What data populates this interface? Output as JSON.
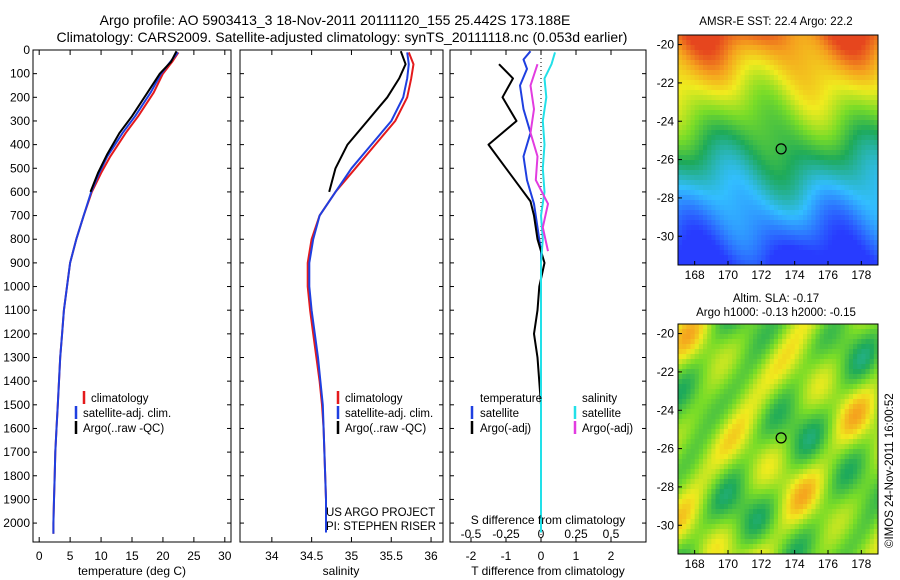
{
  "header": {
    "line1": "Argo profile: AO 5903413_3 18-Nov-2011 20111120_155 25.442S 173.188E",
    "line2": "Climatology: CARS2009. Satellite-adjusted climatology: synTS_20111118.nc (0.053d earlier)"
  },
  "colors": {
    "climatology": "#e41a1c",
    "satellite": "#1f3fe0",
    "argo": "#000000",
    "salinity_satellite": "#22e0e8",
    "salinity_argo": "#e23ce0"
  },
  "legend": {
    "climatology": "climatology",
    "satellite_adj": "satellite-adj. clim.",
    "argo": "Argo(..raw -QC)"
  },
  "diff_legend": {
    "temperature_header": "temperature",
    "salinity_header": "salinity",
    "satellite": "satellite",
    "argo_adj": "Argo(-adj)"
  },
  "credits": {
    "project": "US ARGO PROJECT",
    "pi": "PI: STEPHEN RISER"
  },
  "maps": {
    "sst_title": "AMSR-E SST: 22.4  Argo: 22.2",
    "sla_title1": "Altim. SLA: -0.17",
    "sla_title2": "Argo h1000: -0.13  h2000: -0.15",
    "lon_ticks": [
      "168",
      "170",
      "172",
      "174",
      "176",
      "178"
    ],
    "lat_ticks": [
      "-20",
      "-22",
      "-24",
      "-26",
      "-28",
      "-30"
    ],
    "profile_lon": 173.188,
    "profile_lat": -25.442
  },
  "stamp": "©IMOS 24-Nov-2011 16:00:52",
  "chart_data": [
    {
      "type": "line",
      "name": "temperature",
      "xlabel": "temperature (deg C)",
      "ylabel": "",
      "xlim": [
        -1,
        31
      ],
      "ylim": [
        2080,
        0
      ],
      "xticks": [
        0,
        5,
        10,
        15,
        20,
        25,
        30
      ],
      "yticks": [
        0,
        100,
        200,
        300,
        400,
        500,
        600,
        700,
        800,
        900,
        1000,
        1100,
        1200,
        1300,
        1400,
        1500,
        1600,
        1700,
        1800,
        1900,
        2000
      ],
      "series": [
        {
          "name": "climatology",
          "color": "#e41a1c",
          "points": [
            [
              22.5,
              10
            ],
            [
              21.5,
              50
            ],
            [
              20,
              100
            ],
            [
              18.5,
              180
            ],
            [
              16,
              280
            ],
            [
              14,
              350
            ],
            [
              11.5,
              450
            ],
            [
              10,
              520
            ],
            [
              8.5,
              600
            ],
            [
              7.2,
              700
            ],
            [
              6,
              800
            ],
            [
              5,
              900
            ],
            [
              4.5,
              1000
            ],
            [
              4,
              1100
            ],
            [
              3.7,
              1200
            ],
            [
              3.4,
              1300
            ],
            [
              3.2,
              1400
            ],
            [
              3,
              1500
            ],
            [
              2.8,
              1600
            ],
            [
              2.6,
              1700
            ],
            [
              2.5,
              1800
            ],
            [
              2.4,
              1900
            ],
            [
              2.3,
              2000
            ],
            [
              2.3,
              2045
            ]
          ]
        },
        {
          "name": "satellite-adj. clim.",
          "color": "#1f3fe0",
          "points": [
            [
              22.4,
              10
            ],
            [
              21.2,
              50
            ],
            [
              19.7,
              100
            ],
            [
              18,
              180
            ],
            [
              15.5,
              280
            ],
            [
              13.5,
              350
            ],
            [
              11,
              450
            ],
            [
              9.7,
              520
            ],
            [
              8.4,
              600
            ],
            [
              7.2,
              700
            ],
            [
              6,
              800
            ],
            [
              5,
              900
            ],
            [
              4.5,
              1000
            ],
            [
              4,
              1100
            ],
            [
              3.7,
              1200
            ],
            [
              3.4,
              1300
            ],
            [
              3.2,
              1400
            ],
            [
              3,
              1500
            ],
            [
              2.8,
              1600
            ],
            [
              2.6,
              1700
            ],
            [
              2.5,
              1800
            ],
            [
              2.4,
              1900
            ],
            [
              2.3,
              2000
            ],
            [
              2.3,
              2045
            ]
          ]
        },
        {
          "name": "Argo(..raw -QC)",
          "color": "#000000",
          "points": [
            [
              22.2,
              5
            ],
            [
              21.3,
              50
            ],
            [
              19.5,
              100
            ],
            [
              17.5,
              180
            ],
            [
              15,
              280
            ],
            [
              13,
              350
            ],
            [
              11,
              440
            ],
            [
              9.5,
              520
            ],
            [
              8.3,
              600
            ]
          ]
        }
      ]
    },
    {
      "type": "line",
      "name": "salinity",
      "xlabel": "salinity",
      "ylabel": "",
      "xlim": [
        33.6,
        36.15
      ],
      "ylim": [
        2080,
        0
      ],
      "xticks": [
        34,
        34.5,
        35,
        35.5,
        36
      ],
      "series": [
        {
          "name": "climatology",
          "color": "#e41a1c",
          "points": [
            [
              35.72,
              10
            ],
            [
              35.78,
              60
            ],
            [
              35.75,
              120
            ],
            [
              35.7,
              200
            ],
            [
              35.55,
              300
            ],
            [
              35.3,
              400
            ],
            [
              35.05,
              500
            ],
            [
              34.8,
              600
            ],
            [
              34.6,
              700
            ],
            [
              34.5,
              800
            ],
            [
              34.45,
              900
            ],
            [
              34.45,
              1000
            ],
            [
              34.48,
              1100
            ],
            [
              34.52,
              1200
            ],
            [
              34.56,
              1300
            ],
            [
              34.6,
              1400
            ],
            [
              34.63,
              1500
            ],
            [
              34.65,
              1600
            ],
            [
              34.66,
              1700
            ],
            [
              34.67,
              1800
            ],
            [
              34.68,
              1900
            ],
            [
              34.68,
              2000
            ],
            [
              34.68,
              2040
            ]
          ]
        },
        {
          "name": "satellite-adj. clim.",
          "color": "#1f3fe0",
          "points": [
            [
              35.7,
              10
            ],
            [
              35.72,
              60
            ],
            [
              35.7,
              120
            ],
            [
              35.65,
              200
            ],
            [
              35.5,
              300
            ],
            [
              35.25,
              400
            ],
            [
              35,
              500
            ],
            [
              34.8,
              600
            ],
            [
              34.6,
              700
            ],
            [
              34.52,
              800
            ],
            [
              34.47,
              900
            ],
            [
              34.47,
              1000
            ],
            [
              34.5,
              1100
            ],
            [
              34.54,
              1200
            ],
            [
              34.58,
              1300
            ],
            [
              34.61,
              1400
            ],
            [
              34.64,
              1500
            ],
            [
              34.65,
              1600
            ],
            [
              34.66,
              1700
            ],
            [
              34.67,
              1800
            ],
            [
              34.68,
              1900
            ],
            [
              34.68,
              2000
            ],
            [
              34.68,
              2040
            ]
          ]
        },
        {
          "name": "Argo(..raw -QC)",
          "color": "#000000",
          "points": [
            [
              35.62,
              5
            ],
            [
              35.68,
              60
            ],
            [
              35.6,
              120
            ],
            [
              35.45,
              200
            ],
            [
              35.2,
              300
            ],
            [
              34.95,
              400
            ],
            [
              34.8,
              500
            ],
            [
              34.72,
              600
            ]
          ]
        }
      ]
    },
    {
      "type": "line",
      "name": "difference",
      "xlabel": "T difference from climatology",
      "xlabel2": "S difference from climatology",
      "xlim": [
        -2.6,
        3.0
      ],
      "ylim": [
        2080,
        0
      ],
      "xticks": [
        -2,
        -1,
        0,
        1,
        2
      ],
      "s_ticks": [
        "-0.5",
        "-0.25",
        "0",
        "0.25",
        "0.5"
      ],
      "s_tick_positions": [
        -2,
        -1,
        0,
        1,
        2
      ],
      "series": [
        {
          "name": "temperature satellite",
          "color": "#1f3fe0",
          "points": [
            [
              -0.3,
              5
            ],
            [
              -0.5,
              40
            ],
            [
              -0.4,
              80
            ],
            [
              -0.6,
              150
            ],
            [
              -0.5,
              250
            ],
            [
              -0.3,
              350
            ],
            [
              -0.5,
              450
            ],
            [
              -0.4,
              550
            ],
            [
              -0.2,
              650
            ],
            [
              -0.1,
              750
            ],
            [
              0,
              850
            ],
            [
              0,
              1000
            ],
            [
              0,
              2040
            ]
          ]
        },
        {
          "name": "temperature Argo(-adj)",
          "color": "#000000",
          "points": [
            [
              -1.2,
              60
            ],
            [
              -0.8,
              120
            ],
            [
              -1.1,
              200
            ],
            [
              -0.7,
              300
            ],
            [
              -1.5,
              400
            ],
            [
              -1.0,
              500
            ],
            [
              -0.6,
              580
            ],
            [
              -0.3,
              640
            ],
            [
              -0.2,
              700
            ],
            [
              -0.1,
              800
            ],
            [
              0.1,
              900
            ],
            [
              -0.05,
              1000
            ],
            [
              -0.1,
              1100
            ],
            [
              -0.2,
              1200
            ],
            [
              -0.1,
              1300
            ],
            [
              0,
              1500
            ],
            [
              0,
              2040
            ]
          ]
        },
        {
          "name": "salinity satellite",
          "color": "#22e0e8",
          "points": [
            [
              0.4,
              10
            ],
            [
              0.3,
              60
            ],
            [
              0.1,
              120
            ],
            [
              0.15,
              200
            ],
            [
              0.05,
              300
            ],
            [
              0.1,
              400
            ],
            [
              0.05,
              500
            ],
            [
              0.1,
              600
            ],
            [
              0,
              700
            ],
            [
              0.05,
              800
            ],
            [
              0,
              900
            ],
            [
              0,
              2040
            ]
          ]
        },
        {
          "name": "salinity Argo(-adj)",
          "color": "#e23ce0",
          "points": [
            [
              -0.1,
              60
            ],
            [
              -0.3,
              150
            ],
            [
              -0.2,
              250
            ],
            [
              -0.3,
              350
            ],
            [
              -0.1,
              450
            ],
            [
              -0.15,
              550
            ],
            [
              0.2,
              650
            ],
            [
              0.05,
              750
            ],
            [
              0.2,
              850
            ]
          ]
        }
      ]
    }
  ]
}
